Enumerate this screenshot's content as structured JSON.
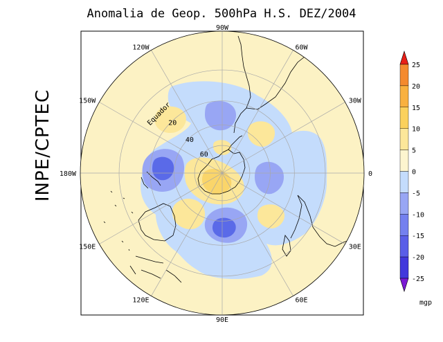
{
  "title": "Anomalia de Geop. 500hPa H.S. DEZ/2004",
  "side_label": "INPE/CPTEC",
  "map": {
    "projection": "polar-stereographic",
    "hemisphere": "south",
    "longitude_labels": [
      {
        "text": "90W",
        "lon": -90
      },
      {
        "text": "60W",
        "lon": -60
      },
      {
        "text": "30W",
        "lon": -30
      },
      {
        "text": "0",
        "lon": 0
      },
      {
        "text": "30E",
        "lon": 30
      },
      {
        "text": "60E",
        "lon": 60
      },
      {
        "text": "90E",
        "lon": 90
      },
      {
        "text": "120E",
        "lon": 120
      },
      {
        "text": "150E",
        "lon": 150
      },
      {
        "text": "180W",
        "lon": 180
      },
      {
        "text": "150W",
        "lon": -150
      },
      {
        "text": "120W",
        "lon": -120
      }
    ],
    "latitude_labels": [
      {
        "text": "Equador",
        "lat": 0
      },
      {
        "text": "20",
        "lat": -20
      },
      {
        "text": "40",
        "lat": -40
      },
      {
        "text": "60",
        "lat": -60
      }
    ],
    "colors": {
      "background_disk": "#fcf2c4",
      "neg_light": "#c4dcfc",
      "neg_mid": "#98a6f4",
      "neg_strong": "#5a6ae8",
      "pos_light": "#fce79a",
      "pos_mid": "#fad56a",
      "grid": "#a8a8a8",
      "coast": "#000000"
    }
  },
  "colorbar": {
    "ticks": [
      "25",
      "20",
      "15",
      "10",
      "5",
      "0",
      "-5",
      "-10",
      "-15",
      "-20",
      "-25"
    ],
    "unit": "mgp",
    "colors": [
      "#f04f22",
      "#f48a2e",
      "#f9b13f",
      "#fbd15c",
      "#fce79a",
      "#fdf5cf",
      "#c4dcfc",
      "#98a6f4",
      "#7480ef",
      "#5a5ee8",
      "#4238dc",
      "#7a18d4"
    ],
    "top_arrow_color": "#e82018",
    "bottom_arrow_color": "#7a18d4"
  }
}
